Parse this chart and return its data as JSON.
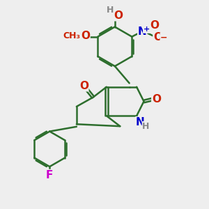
{
  "bg_color": "#eeeeee",
  "bond_color": "#2d6e2d",
  "bond_width": 1.8,
  "dbo": 0.07,
  "atom_colors": {
    "O": "#cc2200",
    "N": "#0000cc",
    "F": "#cc00cc",
    "H": "#888888"
  },
  "fs": 11,
  "fs_s": 9
}
